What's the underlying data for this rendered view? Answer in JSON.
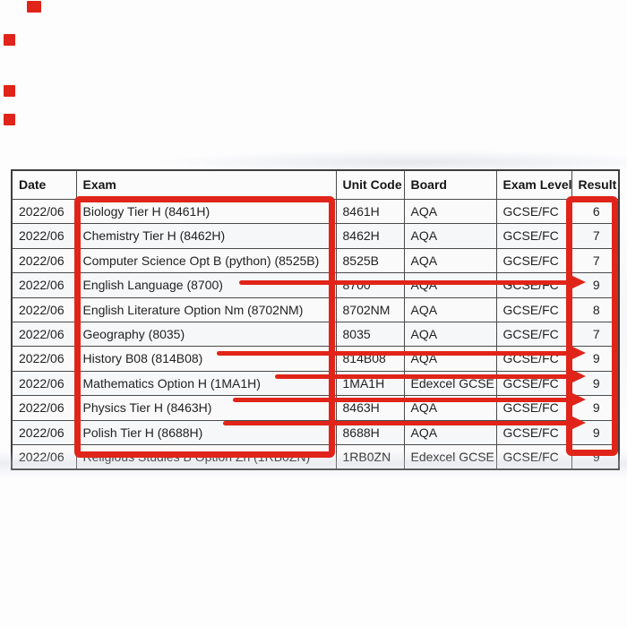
{
  "annotation_color": "#e02419",
  "table": {
    "headers": {
      "date": "Date",
      "exam": "Exam",
      "unit_code": "Unit Code",
      "board": "Board",
      "exam_level": "Exam Level",
      "result": "Result"
    },
    "rows": [
      {
        "date": "2022/06",
        "exam": "Biology Tier H (8461H)",
        "unit_code": "8461H",
        "board": "AQA",
        "exam_level": "GCSE/FC",
        "result": "6"
      },
      {
        "date": "2022/06",
        "exam": "Chemistry Tier H (8462H)",
        "unit_code": "8462H",
        "board": "AQA",
        "exam_level": "GCSE/FC",
        "result": "7"
      },
      {
        "date": "2022/06",
        "exam": "Computer Science Opt B (python) (8525B)",
        "unit_code": "8525B",
        "board": "AQA",
        "exam_level": "GCSE/FC",
        "result": "7"
      },
      {
        "date": "2022/06",
        "exam": "English Language (8700)",
        "unit_code": "8700",
        "board": "AQA",
        "exam_level": "GCSE/FC",
        "result": "9"
      },
      {
        "date": "2022/06",
        "exam": "English Literature Option Nm (8702NM)",
        "unit_code": "8702NM",
        "board": "AQA",
        "exam_level": "GCSE/FC",
        "result": "8"
      },
      {
        "date": "2022/06",
        "exam": "Geography (8035)",
        "unit_code": "8035",
        "board": "AQA",
        "exam_level": "GCSE/FC",
        "result": "7"
      },
      {
        "date": "2022/06",
        "exam": "History B08 (814B08)",
        "unit_code": "814B08",
        "board": "AQA",
        "exam_level": "GCSE/FC",
        "result": "9"
      },
      {
        "date": "2022/06",
        "exam": "Mathematics Option H (1MA1H)",
        "unit_code": "1MA1H",
        "board": "Edexcel GCSE",
        "exam_level": "GCSE/FC",
        "result": "9"
      },
      {
        "date": "2022/06",
        "exam": "Physics Tier H (8463H)",
        "unit_code": "8463H",
        "board": "AQA",
        "exam_level": "GCSE/FC",
        "result": "9"
      },
      {
        "date": "2022/06",
        "exam": "Polish Tier H (8688H)",
        "unit_code": "8688H",
        "board": "AQA",
        "exam_level": "GCSE/FC",
        "result": "9"
      },
      {
        "date": "2022/06",
        "exam": "Religious Studies B Option Zn (1RB0ZN)",
        "unit_code": "1RB0ZN",
        "board": "Edexcel GCSE",
        "exam_level": "GCSE/FC",
        "result": "9"
      }
    ]
  },
  "annotations": {
    "exam_column_boxed": true,
    "result_column_boxed": true,
    "arrow_row_indices": [
      3,
      6,
      7,
      8,
      9
    ]
  }
}
